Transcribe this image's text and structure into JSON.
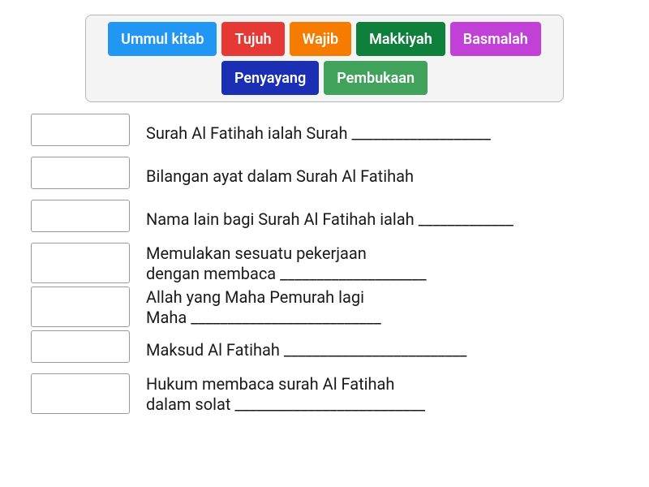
{
  "word_bank": {
    "border_color": "#b8b8b8",
    "bg": "#f4f4f4",
    "tiles": [
      {
        "label": "Ummul kitab",
        "color": "#2196f3"
      },
      {
        "label": "Tujuh",
        "color": "#e53935"
      },
      {
        "label": "Wajib",
        "color": "#f57c00"
      },
      {
        "label": "Makkiyah",
        "color": "#0f803c"
      },
      {
        "label": "Basmalah",
        "color": "#c140d6"
      },
      {
        "label": "Penyayang",
        "color": "#1a2fb3"
      },
      {
        "label": "Pembukaan",
        "color": "#41a35b"
      }
    ]
  },
  "questions": [
    {
      "text": "Surah Al Fatihah ialah Surah ___________________",
      "tall": false
    },
    {
      "text": "Bilangan ayat dalam Surah Al Fatihah",
      "tall": false
    },
    {
      "text": "Nama lain bagi Surah Al Fatihah ialah _____________",
      "tall": false
    },
    {
      "text": "Memulakan sesuatu pekerjaan\ndengan membaca ____________________",
      "tall": true
    },
    {
      "text": "Allah yang Maha Pemurah lagi\nMaha __________________________",
      "tall": true
    },
    {
      "text": "Maksud Al Fatihah _________________________",
      "tall": false
    },
    {
      "text": "Hukum membaca surah Al Fatihah\ndalam solat __________________________",
      "tall": true
    }
  ]
}
